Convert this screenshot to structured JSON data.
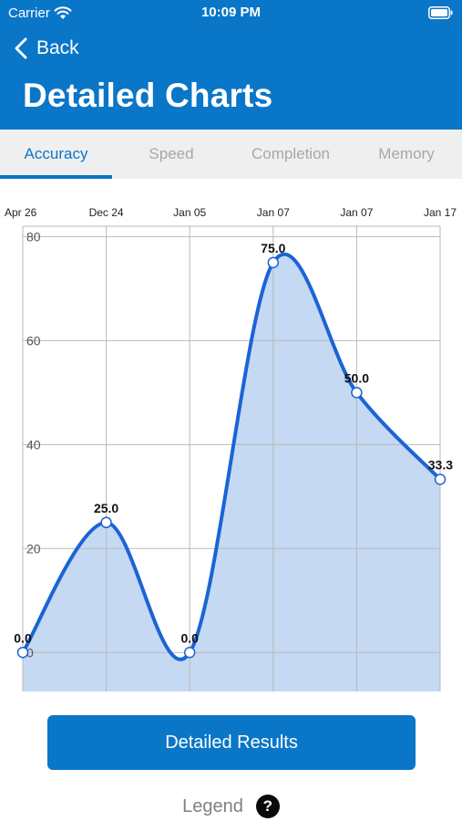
{
  "status_bar": {
    "carrier": "Carrier",
    "time": "10:09 PM",
    "wifi_icon": "wifi-icon",
    "battery_icon": "battery-icon"
  },
  "header": {
    "back_label": "Back",
    "back_icon": "chevron-left-icon",
    "title": "Detailed Charts",
    "background": "#0a76c8"
  },
  "tabs": [
    {
      "label": "Accuracy",
      "active": true
    },
    {
      "label": "Speed",
      "active": false
    },
    {
      "label": "Completion",
      "active": false
    },
    {
      "label": "Memory",
      "active": false
    }
  ],
  "chart_data": {
    "type": "area",
    "categories": [
      "Apr 26",
      "Dec 24",
      "Jan 05",
      "Jan 07",
      "Jan 07",
      "Jan 17"
    ],
    "series": [
      {
        "values": [
          0.0,
          25.0,
          0.0,
          75.0,
          50.0,
          33.3
        ]
      }
    ],
    "data_labels": [
      "0.0",
      "25.0",
      "0.0",
      "75.0",
      "50.0",
      "33.3"
    ],
    "ylim": [
      -7.5,
      82
    ],
    "y_ticks": [
      0,
      20,
      40,
      60,
      80
    ],
    "x_axis_position": "top",
    "grid": true,
    "colors": {
      "line": "#1b64d6",
      "fill": "#c6d9f2",
      "grid": "#b9b9b9"
    }
  },
  "results_button": {
    "label": "Detailed Results"
  },
  "legend": {
    "label": "Legend",
    "help_icon": "help-icon",
    "help_glyph": "?"
  }
}
